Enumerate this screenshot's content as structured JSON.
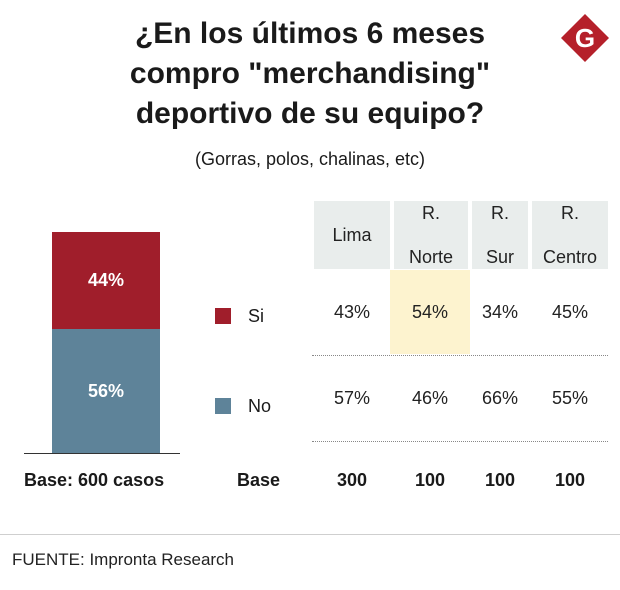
{
  "chart_data": {
    "type": "table",
    "title": "¿En los últimos 6 meses compro \"merchandising\" deportivo de su equipo?",
    "subtitle": "(Gorras, polos, chalinas, etc)",
    "stacked_bar": {
      "series": [
        {
          "name": "Si",
          "value": 44,
          "label": "44%",
          "color": "#a01e2b"
        },
        {
          "name": "No",
          "value": 56,
          "label": "56%",
          "color": "#5e8399"
        }
      ],
      "base_note": "Base: 600 casos"
    },
    "legend": [
      {
        "label": "Si",
        "color": "#a01e2b"
      },
      {
        "label": "No",
        "color": "#5e8399"
      }
    ],
    "table": {
      "columns": [
        {
          "line1": "Lima",
          "line2": ""
        },
        {
          "line1": "R.",
          "line2": "Norte"
        },
        {
          "line1": "R.",
          "line2": "Sur"
        },
        {
          "line1": "R.",
          "line2": "Centro"
        }
      ],
      "rows": [
        {
          "name": "Si",
          "values": [
            "43%",
            "54%",
            "34%",
            "45%"
          ]
        },
        {
          "name": "No",
          "values": [
            "57%",
            "46%",
            "66%",
            "55%"
          ]
        }
      ],
      "base_label": "Base",
      "base_values": [
        "300",
        "100",
        "100",
        "100"
      ]
    }
  },
  "logo": {
    "letter": "G",
    "color": "#b5202a"
  },
  "source": "FUENTE: Impronta Research"
}
